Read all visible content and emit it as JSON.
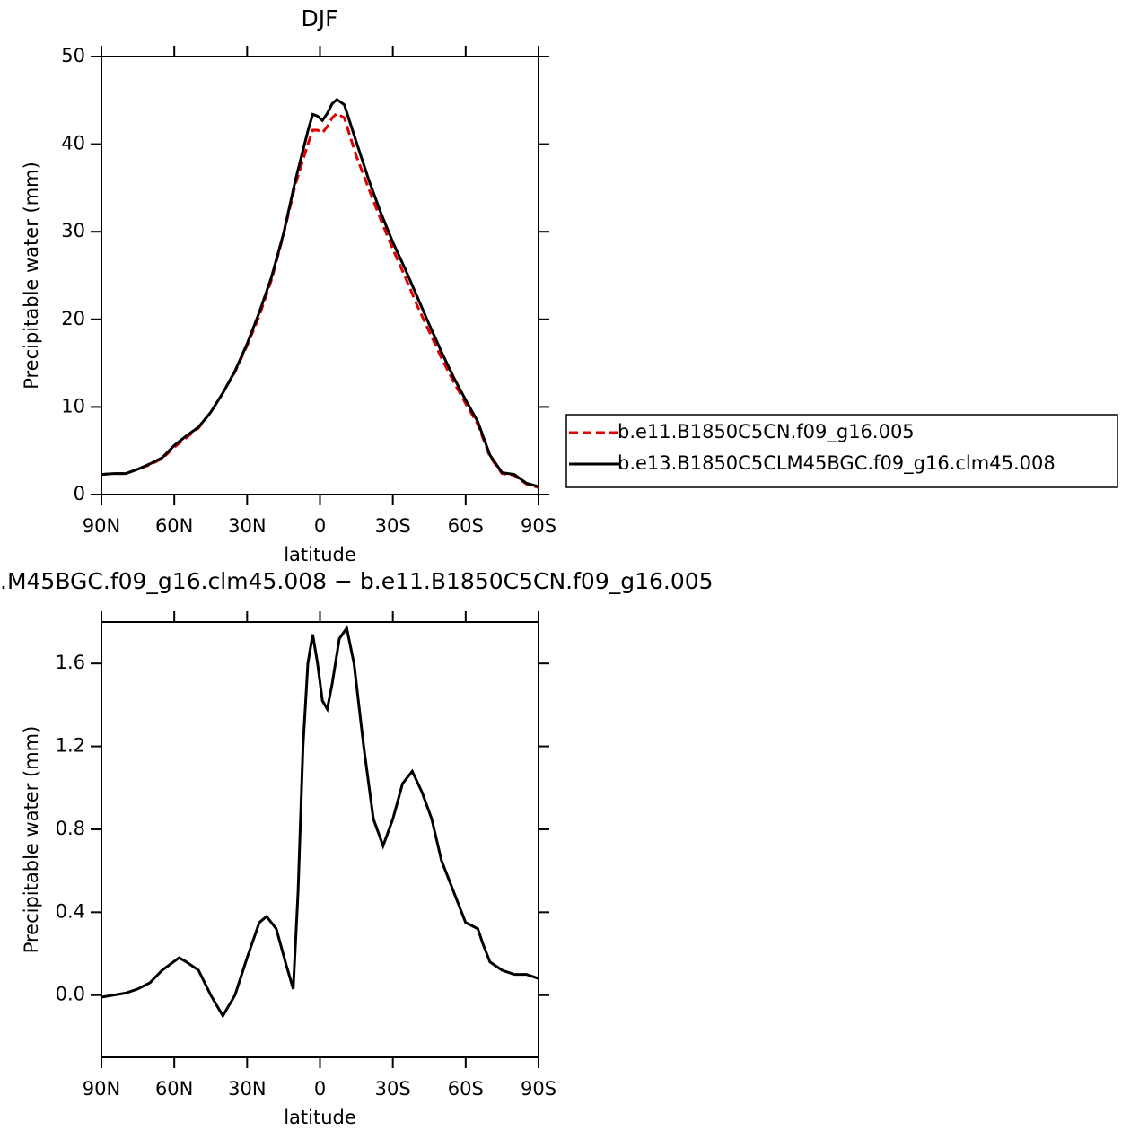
{
  "chart_data": [
    {
      "type": "line",
      "title": "DJF",
      "x_label": "latitude",
      "y_label": "Precipitable water (mm)",
      "x": [
        90,
        85,
        80,
        75,
        70,
        65,
        60,
        55,
        50,
        45,
        40,
        35,
        30,
        25,
        20,
        15,
        10,
        5,
        3,
        1,
        -1,
        -3,
        -5,
        -7,
        -10,
        -15,
        -20,
        -25,
        -30,
        -35,
        -40,
        -45,
        -50,
        -55,
        -60,
        -65,
        -70,
        -75,
        -80,
        -85,
        -90
      ],
      "xlim": [
        90,
        -90
      ],
      "xticks": [
        {
          "value": 90,
          "label": "90N"
        },
        {
          "value": 60,
          "label": "60N"
        },
        {
          "value": 30,
          "label": "30N"
        },
        0,
        {
          "value": -30,
          "label": "30S"
        },
        {
          "value": -60,
          "label": "60S"
        },
        {
          "value": -90,
          "label": "90S"
        }
      ],
      "ylim": [
        0,
        50
      ],
      "yticks": [
        0,
        10,
        20,
        30,
        40,
        50
      ],
      "series": [
        {
          "name": "b.e11.B1850C5CN.f09_g16.005",
          "color": "#e00000",
          "dash": true,
          "values": [
            2.3,
            2.4,
            2.4,
            2.9,
            3.4,
            4.1,
            5.4,
            6.5,
            7.6,
            9.4,
            11.6,
            14.0,
            17.0,
            20.4,
            24.5,
            29.7,
            35.5,
            40.0,
            41.6,
            41.6,
            41.3,
            42.0,
            43.0,
            43.5,
            43.0,
            38.6,
            35.0,
            31.4,
            28.0,
            24.9,
            21.6,
            18.6,
            15.6,
            12.9,
            10.4,
            8.0,
            4.3,
            2.4,
            2.2,
            1.2,
            0.8
          ]
        },
        {
          "name": "b.e13.B1850C5CLM45BGC.f09_g16.clm45.008",
          "color": "#000000",
          "dash": false,
          "values": [
            2.3,
            2.4,
            2.4,
            2.9,
            3.5,
            4.2,
            5.6,
            6.7,
            7.7,
            9.4,
            11.6,
            14.1,
            17.2,
            20.8,
            24.8,
            29.8,
            36.0,
            41.5,
            43.4,
            43.2,
            42.7,
            43.5,
            44.6,
            45.1,
            44.5,
            40.2,
            36.0,
            32.2,
            28.8,
            25.8,
            22.6,
            19.4,
            16.3,
            13.4,
            10.8,
            8.3,
            4.5,
            2.5,
            2.3,
            1.3,
            0.9
          ]
        }
      ]
    },
    {
      "type": "line",
      "title": ".M45BGC.f09_g16.clm45.008 − b.e11.B1850C5CN.f09_g16.005",
      "x_label": "latitude",
      "y_label": "Precipitable water (mm)",
      "x": [
        90,
        85,
        80,
        75,
        70,
        65,
        58,
        55,
        50,
        45,
        40,
        35,
        30,
        25,
        22,
        18,
        14,
        11,
        9,
        7,
        5,
        3,
        1,
        -1,
        -3,
        -5,
        -8,
        -11,
        -14,
        -18,
        -22,
        -26,
        -30,
        -34,
        -38,
        -42,
        -46,
        -50,
        -55,
        -60,
        -65,
        -67,
        -70,
        -75,
        -80,
        -85,
        -90
      ],
      "xlim": [
        90,
        -90
      ],
      "xticks": [
        {
          "value": 90,
          "label": "90N"
        },
        {
          "value": 60,
          "label": "60N"
        },
        {
          "value": 30,
          "label": "30N"
        },
        0,
        {
          "value": -30,
          "label": "30S"
        },
        {
          "value": -60,
          "label": "60S"
        },
        {
          "value": -90,
          "label": "90S"
        }
      ],
      "ylim": [
        -0.3,
        1.8
      ],
      "yticks": [
        {
          "value": 0,
          "label": "0.0"
        },
        0.4,
        0.8,
        1.2,
        1.6
      ],
      "series": [
        {
          "color": "#000000",
          "dash": false,
          "values": [
            -0.01,
            0,
            0.01,
            0.03,
            0.06,
            0.12,
            0.18,
            0.16,
            0.12,
            0.0,
            -0.1,
            0.0,
            0.18,
            0.35,
            0.38,
            0.32,
            0.15,
            0.03,
            0.5,
            1.2,
            1.6,
            1.74,
            1.6,
            1.42,
            1.38,
            1.5,
            1.72,
            1.77,
            1.6,
            1.2,
            0.85,
            0.72,
            0.85,
            1.02,
            1.08,
            0.98,
            0.85,
            0.65,
            0.5,
            0.35,
            0.32,
            0.25,
            0.16,
            0.12,
            0.1,
            0.1,
            0.08
          ]
        }
      ]
    }
  ]
}
